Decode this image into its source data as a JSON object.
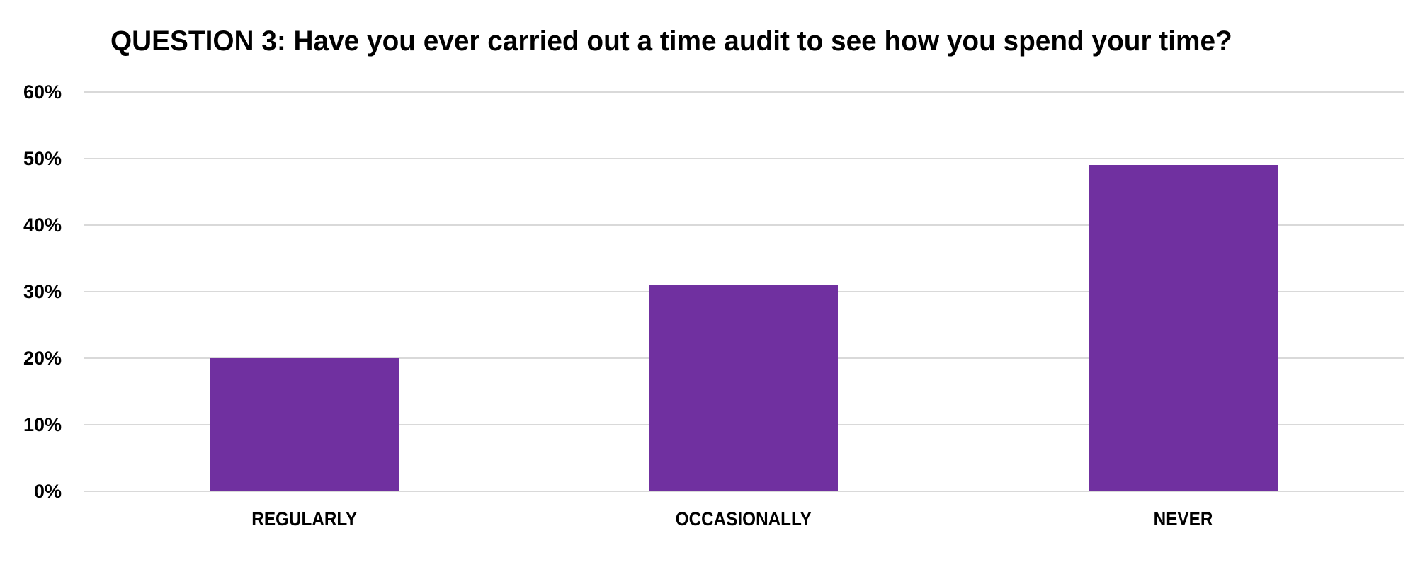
{
  "chart_data": {
    "type": "bar",
    "title": "QUESTION 3: Have you ever carried out a time audit to see how you spend your time?",
    "categories": [
      "REGULARLY",
      "OCCASIONALLY",
      "NEVER"
    ],
    "values": [
      20,
      31,
      49
    ],
    "unit": "%",
    "xlabel": "",
    "ylabel": "",
    "ylim": [
      0,
      60
    ],
    "yticks": [
      "0%",
      "10%",
      "20%",
      "30%",
      "40%",
      "50%",
      "60%"
    ],
    "grid": true,
    "legend": null,
    "bar_color": "#7030A0",
    "gridline_color": "#D9D9D9"
  },
  "title": "QUESTION 3: Have you ever carried out a time audit to see how you spend your time?",
  "y_axis": {
    "ticks": [
      "0%",
      "10%",
      "20%",
      "30%",
      "40%",
      "50%",
      "60%"
    ]
  },
  "x_axis": {
    "labels": [
      "REGULARLY",
      "OCCASIONALLY",
      "NEVER"
    ]
  }
}
